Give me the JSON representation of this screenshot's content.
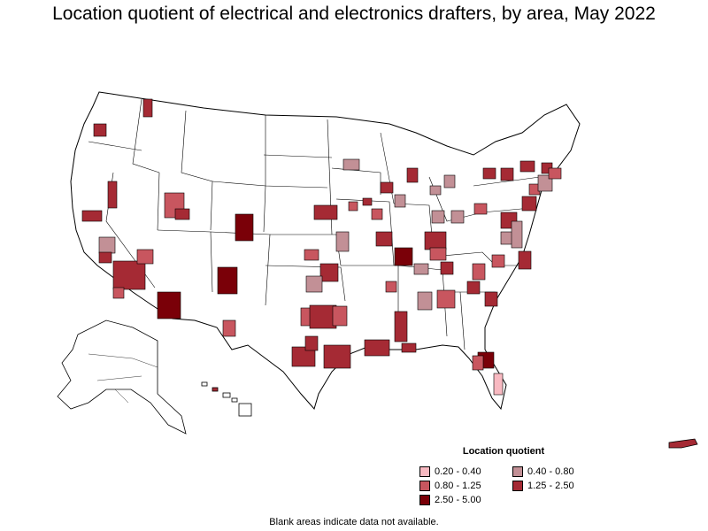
{
  "title": "Location quotient of electrical and electronics drafters, by area, May 2022",
  "legend": {
    "title": "Location quotient",
    "items": [
      {
        "label": "0.20 - 0.40",
        "color": "#f8b9c1"
      },
      {
        "label": "0.40 - 0.80",
        "color": "#c29096"
      },
      {
        "label": "0.80 - 1.25",
        "color": "#c8565f"
      },
      {
        "label": "1.25 - 2.50",
        "color": "#a52a34"
      },
      {
        "label": "2.50 - 5.00",
        "color": "#7a0008"
      }
    ]
  },
  "footnote": "Blank areas indicate data not available.",
  "colors": {
    "border": "#000000",
    "no_data": "#ffffff",
    "background": "#ffffff"
  }
}
